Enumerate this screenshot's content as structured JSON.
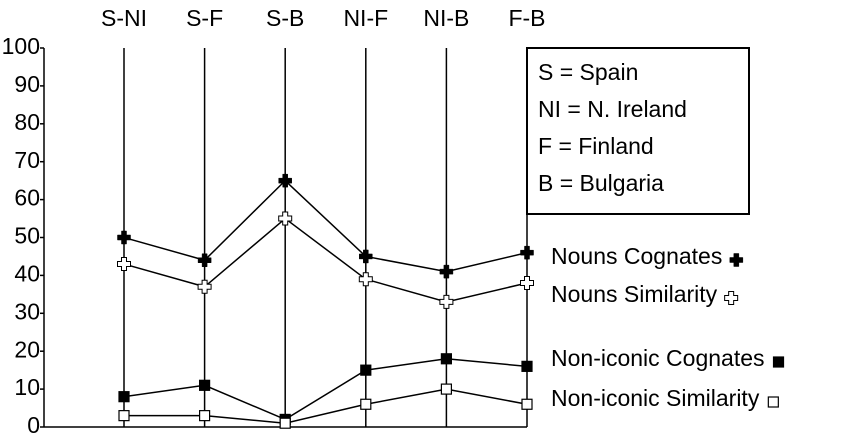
{
  "chart_data": {
    "type": "line",
    "categories": [
      "S-NI",
      "S-F",
      "S-B",
      "NI-F",
      "NI-B",
      "F-B"
    ],
    "series": [
      {
        "name": "Nouns Cognates",
        "color": "#000000",
        "marker": "plus-filled",
        "values": [
          50,
          44,
          65,
          45,
          41,
          46
        ]
      },
      {
        "name": "Nouns Similarity",
        "color": "#000000",
        "marker": "plus-hollow",
        "values": [
          43,
          37,
          55,
          39,
          33,
          38
        ]
      },
      {
        "name": "Non-iconic Cognates",
        "color": "#000000",
        "marker": "square-filled",
        "values": [
          8,
          11,
          2,
          15,
          18,
          16
        ]
      },
      {
        "name": "Non-iconic Similarity",
        "color": "#000000",
        "marker": "square-hollow",
        "values": [
          3,
          3,
          1,
          6,
          10,
          6
        ]
      }
    ],
    "ylim": [
      0,
      100
    ],
    "yticks": [
      0,
      10,
      20,
      30,
      40,
      50,
      60,
      70,
      80,
      90,
      100
    ],
    "grid": true,
    "annotations": [
      "S =  Spain",
      "NI = N. Ireland",
      "F =  Finland",
      "B =  Bulgaria"
    ]
  }
}
